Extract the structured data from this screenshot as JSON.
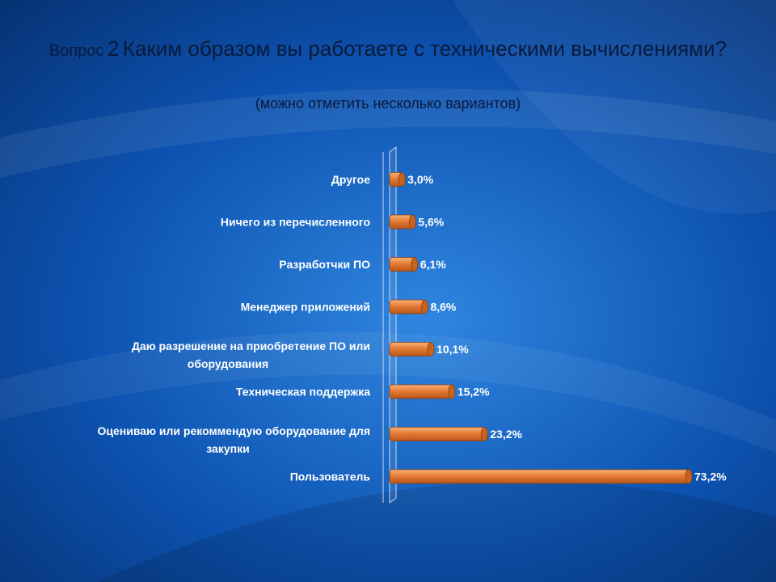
{
  "slide": {
    "title_prefix": "Вопрос",
    "title_number": "2",
    "title_main": "Каким образом вы работаете с техническими вычислениями?",
    "subtitle": "(можно отметить несколько вариантов)"
  },
  "colors": {
    "bar_light": "#f6b27a",
    "bar_mid": "#e57c35",
    "bar_dark": "#b8561a",
    "background_dark": "#06306f",
    "background_light": "#2f86e0"
  },
  "chart_data": {
    "type": "bar",
    "orientation": "horizontal",
    "title": "Вопрос 2 Каким образом вы работаете с техническими вычислениями?",
    "subtitle": "(можно отметить несколько вариантов)",
    "categories": [
      [
        "Другое"
      ],
      [
        "Ничего из перечисленного"
      ],
      [
        "Разработчки ПО"
      ],
      [
        "Менеджер приложений"
      ],
      [
        "Даю разрешение на приобретение ПО или",
        "оборудования"
      ],
      [
        "Техническая поддержка"
      ],
      [
        "Оцениваю или рекоммендую оборудование для",
        "закупки"
      ],
      [
        "Пользователь"
      ]
    ],
    "values": [
      3.0,
      5.6,
      6.1,
      8.6,
      10.1,
      15.2,
      23.2,
      73.2
    ],
    "value_labels": [
      "3,0%",
      "5,6%",
      "6,1%",
      "8,6%",
      "10,1%",
      "15,2%",
      "23,2%",
      "73,2%"
    ],
    "xlim": [
      0,
      73.2
    ],
    "grid": false,
    "legend": "none"
  }
}
